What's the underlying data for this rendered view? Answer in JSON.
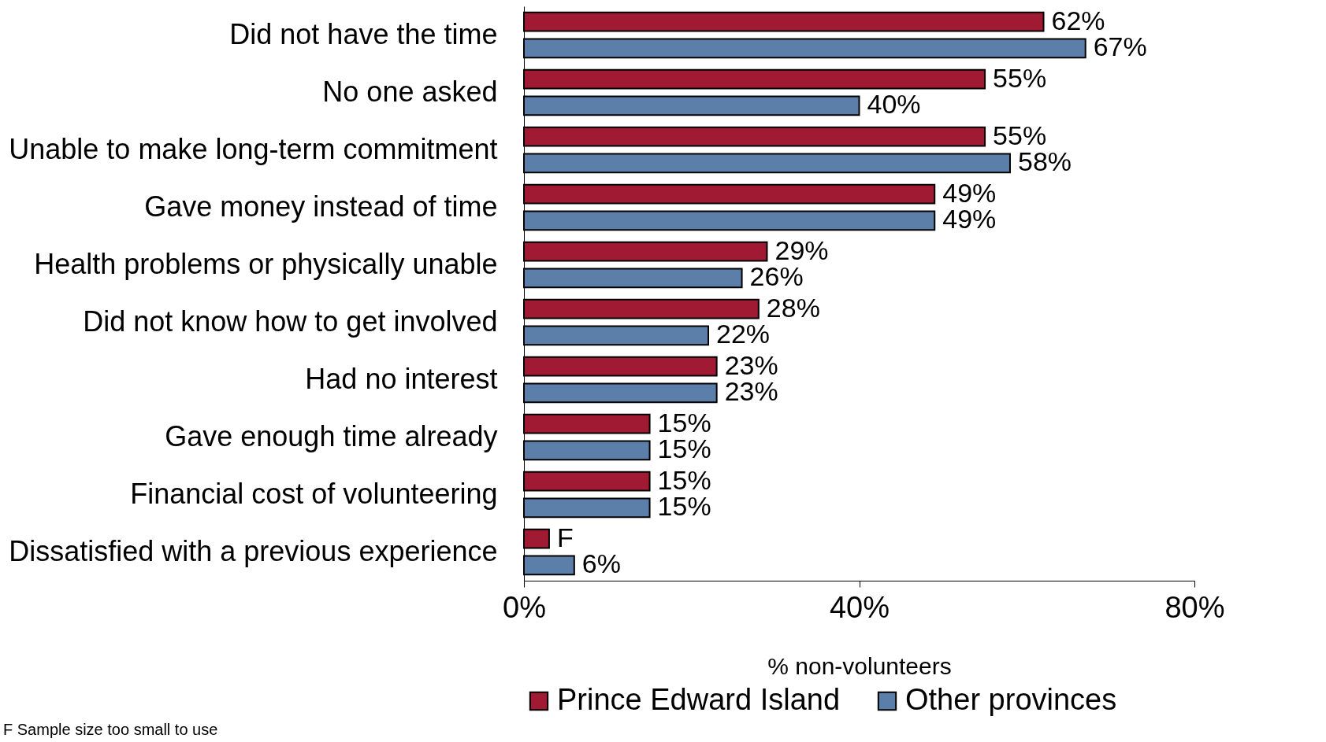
{
  "chart_data": {
    "type": "bar",
    "orientation": "horizontal",
    "xlabel": "% non-volunteers",
    "categories": [
      "Did not have the time",
      "No one asked",
      "Unable to make long-term commitment",
      "Gave money instead of time",
      "Health problems or physically unable",
      "Did not know how to get involved",
      "Had no interest",
      "Gave enough time already",
      "Financial cost of volunteering",
      "Dissatisfied with a previous experience"
    ],
    "series": [
      {
        "name": "Prince Edward Island",
        "color": "#a01a33",
        "values": [
          62,
          55,
          55,
          49,
          29,
          28,
          23,
          15,
          15,
          3
        ],
        "value_labels": [
          "62%",
          "55%",
          "55%",
          "49%",
          "29%",
          "28%",
          "23%",
          "15%",
          "15%",
          "F"
        ]
      },
      {
        "name": "Other provinces",
        "color": "#5b7fa8",
        "values": [
          67,
          40,
          58,
          49,
          26,
          22,
          23,
          15,
          15,
          6
        ],
        "value_labels": [
          "67%",
          "40%",
          "58%",
          "49%",
          "26%",
          "22%",
          "23%",
          "15%",
          "15%",
          "6%"
        ]
      }
    ],
    "xlim": [
      0,
      80
    ],
    "xticks": [
      {
        "value": 0,
        "label": "0%"
      },
      {
        "value": 40,
        "label": "40%"
      },
      {
        "value": 80,
        "label": "80%"
      }
    ],
    "grid": false,
    "legend": "bottom",
    "annotations": [
      "F Sample size too small to use"
    ]
  }
}
